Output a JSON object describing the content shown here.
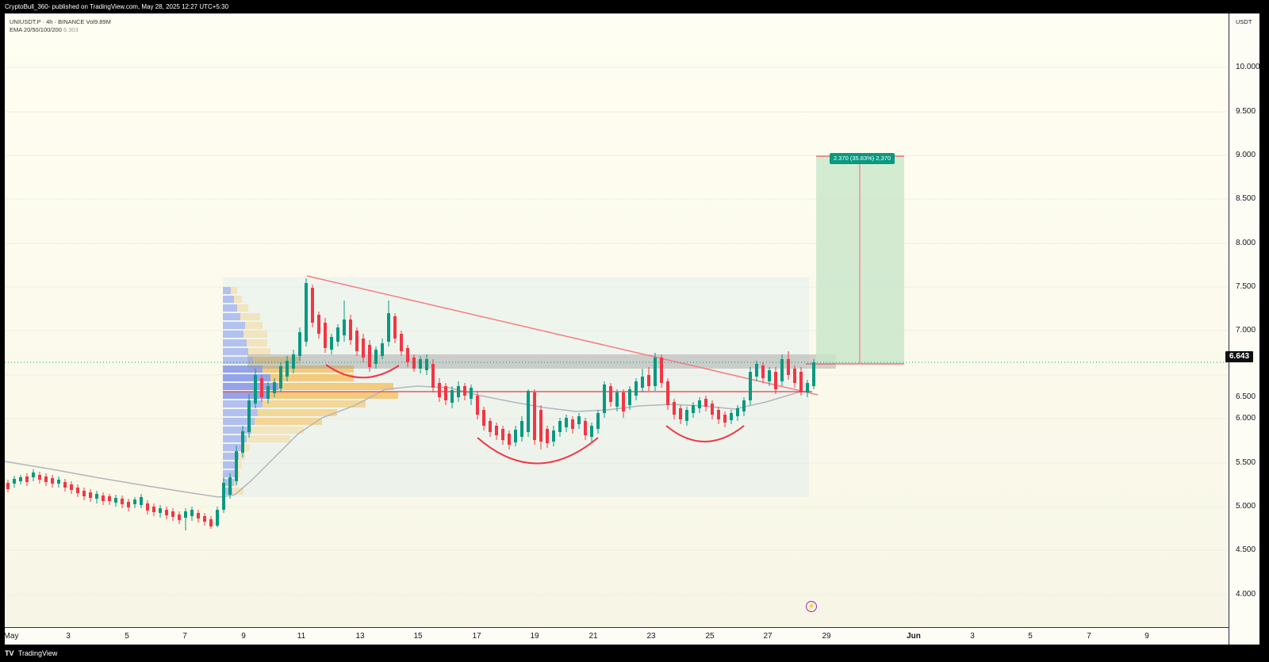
{
  "header": {
    "publish_line": "CryptoBull_360- published on TradingView.com, May 28, 2025 12:27 UTC+5:30"
  },
  "legend": {
    "symbol_line": "UNIUSDT.P · 4h · BINANCE  Vol9.89M",
    "ema_label": "EMA 20/50/100/200",
    "ema_value": "6.303"
  },
  "price_axis": {
    "unit": "USDT",
    "ticks": [
      "10.000",
      "9.500",
      "9.000",
      "8.500",
      "8.000",
      "7.500",
      "7.000",
      "6.500",
      "6.000",
      "5.500",
      "5.000",
      "4.500",
      "4.000"
    ],
    "current_price": "6.643"
  },
  "time_axis": {
    "ticks": [
      "May",
      "3",
      "5",
      "7",
      "9",
      "11",
      "13",
      "15",
      "17",
      "19",
      "21",
      "23",
      "25",
      "27",
      "29",
      "Jun",
      "3",
      "5",
      "7",
      "9"
    ]
  },
  "target": {
    "label": "2.370 (35.83%) 2,370",
    "entry": 6.61,
    "target": 8.98
  },
  "footer": {
    "logo": "TV",
    "brand": "TradingView"
  },
  "colors": {
    "up": "#089981",
    "down": "#f23645",
    "ema": "#b2b5be",
    "trendline": "#f77c80",
    "target_zone": "#c8e6c9"
  }
}
